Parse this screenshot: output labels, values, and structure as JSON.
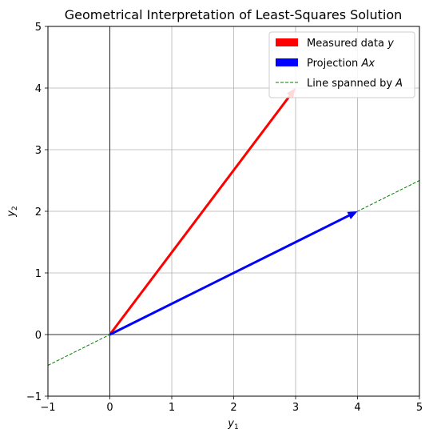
{
  "chart_data": {
    "type": "vector-plot",
    "title": "Geometrical Interpretation of Least-Squares Solution",
    "xlabel": "y",
    "xlabel_sub": "1",
    "ylabel": "y",
    "ylabel_sub": "2",
    "xlim": [
      -1,
      5
    ],
    "ylim": [
      -1,
      5
    ],
    "xticks": [
      -1,
      0,
      1,
      2,
      3,
      4,
      5
    ],
    "yticks": [
      -1,
      0,
      1,
      2,
      3,
      4,
      5
    ],
    "xtick_labels": [
      "−1",
      "0",
      "1",
      "2",
      "3",
      "4",
      "5"
    ],
    "ytick_labels": [
      "−1",
      "0",
      "1",
      "2",
      "3",
      "4",
      "5"
    ],
    "grid": true,
    "legend_position": "top-right",
    "vectors": [
      {
        "name": "Measured data",
        "name_var": "y",
        "from": [
          0,
          0
        ],
        "to": [
          3,
          4
        ],
        "color": "#ff0000"
      },
      {
        "name": "Projection",
        "name_var": "Ax",
        "from": [
          0,
          0
        ],
        "to": [
          4,
          2
        ],
        "color": "#0000ff"
      }
    ],
    "lines": [
      {
        "name": "Line spanned by",
        "name_var": "A",
        "x": [
          -1,
          5
        ],
        "y": [
          -0.5,
          2.5
        ],
        "style": "dashed",
        "color": "#008000"
      }
    ]
  }
}
